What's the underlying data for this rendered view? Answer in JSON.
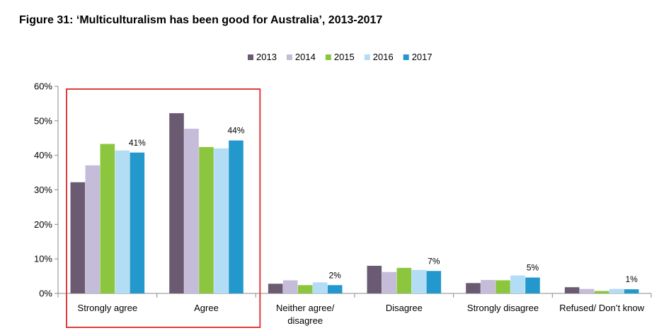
{
  "figure_title": "Figure 31: ‘Multiculturalism has been good for Australia’, 2013-2017",
  "chart_data": {
    "type": "bar",
    "title": "Figure 31: ‘Multiculturalism has been good for Australia’, 2013-2017",
    "xlabel": "",
    "ylabel": "",
    "ylim": [
      0,
      60
    ],
    "yticks": [
      "0%",
      "10%",
      "20%",
      "30%",
      "40%",
      "50%",
      "60%"
    ],
    "grid": false,
    "legend_position": "top",
    "categories": [
      [
        "Strongly agree"
      ],
      [
        "Agree"
      ],
      [
        "Neither agree/",
        "disagree"
      ],
      [
        "Disagree"
      ],
      [
        "Strongly disagree"
      ],
      [
        "Refused/ Don’t know"
      ]
    ],
    "series": [
      {
        "name": "2013",
        "color": "#6b5b72",
        "values": [
          32.2,
          52.2,
          2.8,
          8.0,
          3.0,
          1.8
        ]
      },
      {
        "name": "2014",
        "color": "#c4bcd8",
        "values": [
          37.1,
          47.7,
          3.8,
          6.2,
          3.9,
          1.3
        ]
      },
      {
        "name": "2015",
        "color": "#8cc63f",
        "values": [
          43.3,
          42.4,
          2.4,
          7.4,
          3.8,
          0.7
        ]
      },
      {
        "name": "2016",
        "color": "#b3dcf5",
        "values": [
          41.4,
          42.0,
          3.2,
          6.8,
          5.2,
          1.3
        ]
      },
      {
        "name": "2017",
        "color": "#2398cc",
        "values": [
          40.8,
          44.3,
          2.4,
          6.5,
          4.6,
          1.2
        ]
      }
    ],
    "data_labels": [
      "41%",
      "44%",
      "2%",
      "7%",
      "5%",
      "1%"
    ],
    "highlight": {
      "categories": [
        "Strongly agree",
        "Agree"
      ],
      "color": "#e03c3c"
    }
  }
}
